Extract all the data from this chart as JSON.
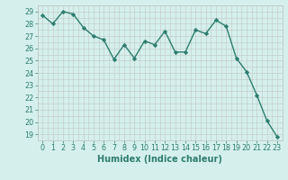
{
  "x": [
    0,
    1,
    2,
    3,
    4,
    5,
    6,
    7,
    8,
    9,
    10,
    11,
    12,
    13,
    14,
    15,
    16,
    17,
    18,
    19,
    20,
    21,
    22,
    23
  ],
  "y": [
    28.7,
    28.0,
    29.0,
    28.8,
    27.7,
    27.0,
    26.7,
    25.1,
    26.3,
    25.2,
    26.6,
    26.3,
    27.4,
    25.7,
    25.7,
    27.5,
    27.2,
    28.3,
    27.8,
    25.2,
    24.1,
    22.2,
    20.1,
    18.8
  ],
  "line_color": "#2e7d6e",
  "marker": "D",
  "marker_size": 2.2,
  "linewidth": 1.0,
  "xlabel": "Humidex (Indice chaleur)",
  "xlim": [
    -0.5,
    23.5
  ],
  "ylim": [
    18.5,
    29.5
  ],
  "yticks": [
    19,
    20,
    21,
    22,
    23,
    24,
    25,
    26,
    27,
    28,
    29
  ],
  "xticks": [
    0,
    1,
    2,
    3,
    4,
    5,
    6,
    7,
    8,
    9,
    10,
    11,
    12,
    13,
    14,
    15,
    16,
    17,
    18,
    19,
    20,
    21,
    22,
    23
  ],
  "bg_color": "#d5f0ec",
  "grid_color": "#c0c8c4",
  "tick_color": "#2e7d6e",
  "label_color": "#2e7d6e",
  "tick_fontsize": 5.8,
  "xlabel_fontsize": 7.0
}
